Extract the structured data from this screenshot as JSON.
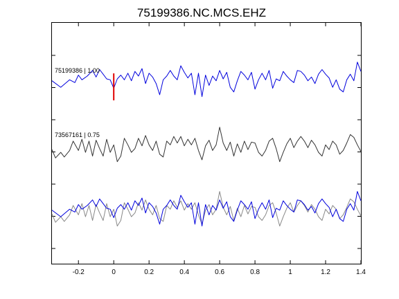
{
  "chart_data": {
    "type": "line",
    "title": "75199386.NC.MCS.EHZ",
    "xlabel": "",
    "ylabel": "",
    "xlim": [
      -0.35,
      1.4
    ],
    "x_ticks": [
      -0.2,
      0,
      0.2,
      0.4,
      0.6,
      0.8,
      1,
      1.2,
      1.4
    ],
    "x_tick_labels": [
      "-0.2",
      "0",
      "0.2",
      "0.4",
      "0.6",
      "0.8",
      "1",
      "1.2",
      "1.4"
    ],
    "y_labels_shown": false,
    "grid": false,
    "pick_marker": {
      "x": 0,
      "color": "#e00000"
    },
    "traces": [
      {
        "label": "75199386 | 1.00",
        "color": "#0000dd",
        "x": [
          -0.35,
          -0.3,
          -0.25,
          -0.22,
          -0.2,
          -0.18,
          -0.15,
          -0.12,
          -0.1,
          -0.08,
          -0.06,
          -0.04,
          -0.02,
          0,
          0.02,
          0.04,
          0.06,
          0.08,
          0.1,
          0.12,
          0.14,
          0.16,
          0.18,
          0.2,
          0.22,
          0.24,
          0.26,
          0.28,
          0.3,
          0.32,
          0.34,
          0.36,
          0.38,
          0.4,
          0.42,
          0.44,
          0.46,
          0.48,
          0.5,
          0.52,
          0.54,
          0.56,
          0.58,
          0.6,
          0.62,
          0.64,
          0.66,
          0.68,
          0.7,
          0.72,
          0.74,
          0.76,
          0.78,
          0.8,
          0.82,
          0.84,
          0.86,
          0.88,
          0.9,
          0.92,
          0.94,
          0.96,
          0.98,
          1,
          1.02,
          1.04,
          1.06,
          1.08,
          1.1,
          1.12,
          1.14,
          1.16,
          1.18,
          1.2,
          1.22,
          1.24,
          1.26,
          1.28,
          1.3,
          1.32,
          1.34,
          1.36,
          1.38,
          1.4
        ],
        "y": [
          0.05,
          -0.3,
          0.1,
          -0.05,
          0.35,
          0.1,
          0.3,
          0.6,
          0.25,
          0.65,
          0.4,
          0.15,
          0.1,
          -0.35,
          0.15,
          0.35,
          0.1,
          0.45,
          0.05,
          0.55,
          0.3,
          0.7,
          -0.1,
          0.45,
          0.25,
          -0.1,
          -0.7,
          0.1,
          0.3,
          0.6,
          0.3,
          0.1,
          0.85,
          0.5,
          0.2,
          0.45,
          -0.7,
          0.45,
          -0.8,
          0.35,
          -0.2,
          0.3,
          0.05,
          0.6,
          0.15,
          0.5,
          -0.3,
          -0.55,
          0.05,
          0.55,
          0.35,
          0.1,
          0.5,
          -0.4,
          0.1,
          0.45,
          0.1,
          0.6,
          -0.35,
          0.15,
          0.05,
          0.55,
          0.3,
          0.1,
          -0.05,
          0.6,
          0.55,
          0.35,
          0.05,
          0.25,
          -0.1,
          0.4,
          0.65,
          0.4,
          0.2,
          -0.3,
          0.1,
          -0.4,
          -0.55,
          0.1,
          0.4,
          0.05,
          1.05,
          0.55
        ]
      },
      {
        "label": "73567161 | 0.75",
        "color": "#333333",
        "x": [
          -0.35,
          -0.33,
          -0.3,
          -0.28,
          -0.25,
          -0.23,
          -0.2,
          -0.18,
          -0.16,
          -0.14,
          -0.12,
          -0.1,
          -0.08,
          -0.06,
          -0.04,
          -0.02,
          0,
          0.02,
          0.04,
          0.06,
          0.08,
          0.1,
          0.12,
          0.14,
          0.16,
          0.18,
          0.2,
          0.22,
          0.24,
          0.26,
          0.28,
          0.3,
          0.32,
          0.34,
          0.36,
          0.38,
          0.4,
          0.42,
          0.44,
          0.46,
          0.48,
          0.5,
          0.52,
          0.54,
          0.56,
          0.58,
          0.6,
          0.62,
          0.64,
          0.66,
          0.68,
          0.7,
          0.72,
          0.74,
          0.76,
          0.78,
          0.8,
          0.82,
          0.84,
          0.86,
          0.88,
          0.9,
          0.92,
          0.94,
          0.96,
          0.98,
          1,
          1.02,
          1.04,
          1.06,
          1.08,
          1.1,
          1.12,
          1.14,
          1.16,
          1.18,
          1.2,
          1.22,
          1.24,
          1.26,
          1.28,
          1.3,
          1.32,
          1.34,
          1.36,
          1.38,
          1.4
        ],
        "y": [
          -0.15,
          -0.6,
          -0.3,
          -0.55,
          -0.2,
          0.3,
          -0.2,
          0.4,
          -0.3,
          0.3,
          -0.5,
          0.35,
          -0.1,
          -0.5,
          0.4,
          -0.3,
          0.1,
          -0.8,
          -0.5,
          0.45,
          0.1,
          -0.3,
          -0.1,
          0.45,
          0.05,
          0.6,
          0.1,
          -0.2,
          0.3,
          -0.4,
          -0.55,
          0.3,
          0.1,
          0.55,
          0.2,
          0.55,
          0.05,
          0.4,
          0.1,
          0.45,
          -0.2,
          -0.7,
          0.05,
          0.35,
          -0.2,
          0.1,
          1.05,
          0.2,
          -0.2,
          0.25,
          -0.5,
          0.15,
          -0.3,
          0.3,
          -0.15,
          0.25,
          0.2,
          -0.3,
          -0.5,
          -0.2,
          0.3,
          0.45,
          -0.1,
          -0.8,
          -0.3,
          0.15,
          0.45,
          -0.05,
          0.3,
          0.55,
          0.3,
          -0.05,
          0.35,
          0.1,
          -0.3,
          -0.5,
          0.1,
          -0.15,
          0.3,
          0.1,
          -0.4,
          -0.2,
          0.2,
          0.65,
          0.5,
          0.1,
          -0.25
        ]
      }
    ],
    "overlay_offset_note": ""
  }
}
